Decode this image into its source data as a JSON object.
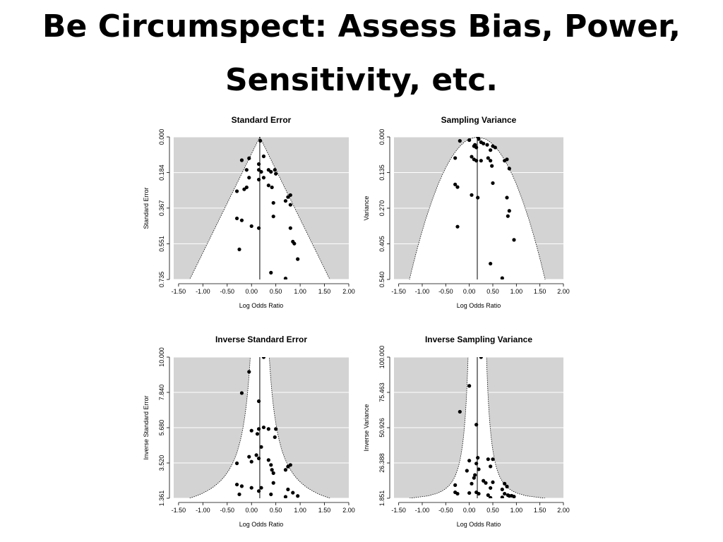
{
  "slide": {
    "title_line1": "Be Circumspect: Assess Bias, Power,",
    "title_line2": "Sensitivity, etc."
  },
  "colors": {
    "panel_bg": "#d3d3d3",
    "funnel": "#ffffff",
    "grid": "#ffffff",
    "points": "#000000"
  },
  "chart_data": [
    {
      "type": "scatter",
      "title": "Standard Error",
      "xlabel": "Log Odds Ratio",
      "ylabel": "Standard Error",
      "xlim": [
        -1.6,
        2.0
      ],
      "ylim": [
        0,
        0.735
      ],
      "y_reversed": true,
      "x_ticks": [
        "-1.50",
        "-1.00",
        "-0.50",
        "0.00",
        "0.50",
        "1.00",
        "1.50",
        "2.00"
      ],
      "y_ticks": [
        "0.000",
        "0.184",
        "0.367",
        "0.551",
        "0.735"
      ],
      "center": 0.17,
      "funnel": "se",
      "points": [
        [
          0.18,
          0.02
        ],
        [
          -0.05,
          0.11
        ],
        [
          -0.2,
          0.12
        ],
        [
          0.15,
          0.14
        ],
        [
          0.25,
          0.1
        ],
        [
          0.15,
          0.17
        ],
        [
          0.2,
          0.18
        ],
        [
          -0.1,
          0.17
        ],
        [
          0.35,
          0.17
        ],
        [
          0.4,
          0.18
        ],
        [
          0.48,
          0.17
        ],
        [
          0.5,
          0.19
        ],
        [
          0.15,
          0.22
        ],
        [
          -0.05,
          0.21
        ],
        [
          0.25,
          0.21
        ],
        [
          0.35,
          0.25
        ],
        [
          -0.1,
          0.26
        ],
        [
          -0.15,
          0.27
        ],
        [
          -0.3,
          0.28
        ],
        [
          0.42,
          0.26
        ],
        [
          0.8,
          0.3
        ],
        [
          0.75,
          0.31
        ],
        [
          0.7,
          0.33
        ],
        [
          0.45,
          0.34
        ],
        [
          0.8,
          0.35
        ],
        [
          -0.3,
          0.42
        ],
        [
          0.45,
          0.41
        ],
        [
          -0.2,
          0.43
        ],
        [
          0.0,
          0.46
        ],
        [
          0.15,
          0.47
        ],
        [
          0.8,
          0.47
        ],
        [
          0.85,
          0.54
        ],
        [
          0.88,
          0.55
        ],
        [
          -0.25,
          0.58
        ],
        [
          0.95,
          0.63
        ],
        [
          0.4,
          0.7
        ],
        [
          0.7,
          0.73
        ]
      ]
    },
    {
      "type": "scatter",
      "title": "Sampling Variance",
      "xlabel": "Log Odds Ratio",
      "ylabel": "Variance",
      "xlim": [
        -1.6,
        2.0
      ],
      "ylim": [
        0,
        0.54
      ],
      "y_reversed": true,
      "x_ticks": [
        "-1.50",
        "-1.00",
        "-0.50",
        "0.00",
        "0.50",
        "1.00",
        "1.50",
        "2.00"
      ],
      "y_ticks": [
        "0.000",
        "0.135",
        "0.270",
        "0.405",
        "0.540"
      ],
      "center": 0.17,
      "funnel": "var",
      "points": [
        [
          0.18,
          0.0
        ],
        [
          -0.2,
          0.015
        ],
        [
          0.2,
          0.008
        ],
        [
          0.0,
          0.012
        ],
        [
          0.25,
          0.02
        ],
        [
          0.12,
          0.03
        ],
        [
          0.3,
          0.025
        ],
        [
          0.1,
          0.035
        ],
        [
          0.15,
          0.04
        ],
        [
          0.38,
          0.03
        ],
        [
          0.5,
          0.035
        ],
        [
          0.45,
          0.05
        ],
        [
          0.55,
          0.04
        ],
        [
          -0.3,
          0.08
        ],
        [
          0.05,
          0.075
        ],
        [
          0.1,
          0.085
        ],
        [
          0.15,
          0.09
        ],
        [
          0.25,
          0.09
        ],
        [
          0.4,
          0.08
        ],
        [
          0.45,
          0.09
        ],
        [
          0.75,
          0.09
        ],
        [
          0.8,
          0.085
        ],
        [
          0.48,
          0.11
        ],
        [
          0.85,
          0.12
        ],
        [
          -0.3,
          0.18
        ],
        [
          -0.25,
          0.19
        ],
        [
          0.5,
          0.175
        ],
        [
          0.05,
          0.22
        ],
        [
          0.18,
          0.23
        ],
        [
          0.8,
          0.23
        ],
        [
          0.85,
          0.28
        ],
        [
          0.82,
          0.3
        ],
        [
          -0.25,
          0.34
        ],
        [
          0.95,
          0.39
        ],
        [
          0.45,
          0.48
        ],
        [
          0.7,
          0.535
        ]
      ]
    },
    {
      "type": "scatter",
      "title": "Inverse Standard Error",
      "xlabel": "Log Odds Ratio",
      "ylabel": "Inverse Standard Error",
      "xlim": [
        -1.6,
        2.0
      ],
      "ylim": [
        1.361,
        10.0
      ],
      "y_reversed": false,
      "x_ticks": [
        "-1.50",
        "-1.00",
        "-0.50",
        "0.00",
        "0.50",
        "1.00",
        "1.50",
        "2.00"
      ],
      "y_ticks": [
        "1.361",
        "3.520",
        "5.680",
        "7.840",
        "10.000"
      ],
      "center": 0.17,
      "funnel": "invse",
      "points": [
        [
          0.25,
          10.0
        ],
        [
          -0.05,
          9.1
        ],
        [
          0.15,
          7.3
        ],
        [
          -0.2,
          7.8
        ],
        [
          0.15,
          5.6
        ],
        [
          0.25,
          5.7
        ],
        [
          0.0,
          5.5
        ],
        [
          0.12,
          5.3
        ],
        [
          0.35,
          5.6
        ],
        [
          0.5,
          5.6
        ],
        [
          0.48,
          5.1
        ],
        [
          0.2,
          4.5
        ],
        [
          -0.05,
          3.9
        ],
        [
          0.1,
          4.0
        ],
        [
          0.15,
          3.8
        ],
        [
          0.0,
          3.6
        ],
        [
          0.35,
          3.7
        ],
        [
          0.4,
          3.4
        ],
        [
          -0.3,
          3.5
        ],
        [
          0.42,
          3.1
        ],
        [
          0.75,
          3.3
        ],
        [
          0.7,
          3.1
        ],
        [
          0.8,
          3.4
        ],
        [
          0.45,
          2.9
        ],
        [
          -0.3,
          2.2
        ],
        [
          0.0,
          2.0
        ],
        [
          -0.2,
          2.1
        ],
        [
          0.2,
          2.0
        ],
        [
          0.45,
          2.3
        ],
        [
          0.75,
          1.9
        ],
        [
          0.85,
          1.7
        ],
        [
          -0.25,
          1.6
        ],
        [
          0.7,
          1.45
        ],
        [
          0.95,
          1.5
        ],
        [
          0.4,
          1.6
        ],
        [
          0.15,
          1.8
        ]
      ]
    },
    {
      "type": "scatter",
      "title": "Inverse Sampling Variance",
      "xlabel": "Log Odds Ratio",
      "ylabel": "Inverse Variance",
      "xlim": [
        -1.6,
        2.0
      ],
      "ylim": [
        1.851,
        100.0
      ],
      "y_reversed": false,
      "x_ticks": [
        "-1.50",
        "-1.00",
        "-0.50",
        "0.00",
        "0.50",
        "1.00",
        "1.50",
        "2.00"
      ],
      "y_ticks": [
        "1.851",
        "26.388",
        "50.926",
        "75.463",
        "100.000"
      ],
      "center": 0.17,
      "funnel": "invvar",
      "points": [
        [
          0.25,
          100.0
        ],
        [
          0.0,
          80.0
        ],
        [
          -0.2,
          62.0
        ],
        [
          0.15,
          53.0
        ],
        [
          0.18,
          30.0
        ],
        [
          0.0,
          28.0
        ],
        [
          0.4,
          29.0
        ],
        [
          0.5,
          29.0
        ],
        [
          0.15,
          26.0
        ],
        [
          0.45,
          24.0
        ],
        [
          0.2,
          22.0
        ],
        [
          -0.05,
          21.0
        ],
        [
          0.12,
          18.0
        ],
        [
          0.1,
          16.0
        ],
        [
          0.3,
          14.0
        ],
        [
          0.35,
          12.5
        ],
        [
          0.5,
          13.0
        ],
        [
          0.05,
          12.0
        ],
        [
          -0.3,
          11.0
        ],
        [
          0.75,
          12.0
        ],
        [
          0.8,
          10.0
        ],
        [
          0.7,
          8.0
        ],
        [
          0.45,
          9.0
        ],
        [
          -0.25,
          5.0
        ],
        [
          -0.3,
          6.0
        ],
        [
          0.0,
          5.5
        ],
        [
          0.2,
          5.0
        ],
        [
          0.4,
          4.0
        ],
        [
          0.75,
          5.0
        ],
        [
          0.82,
          4.0
        ],
        [
          0.85,
          3.5
        ],
        [
          0.9,
          3.6
        ],
        [
          0.95,
          3.0
        ],
        [
          0.7,
          2.5
        ],
        [
          0.45,
          2.2
        ],
        [
          0.15,
          6.0
        ]
      ]
    }
  ]
}
